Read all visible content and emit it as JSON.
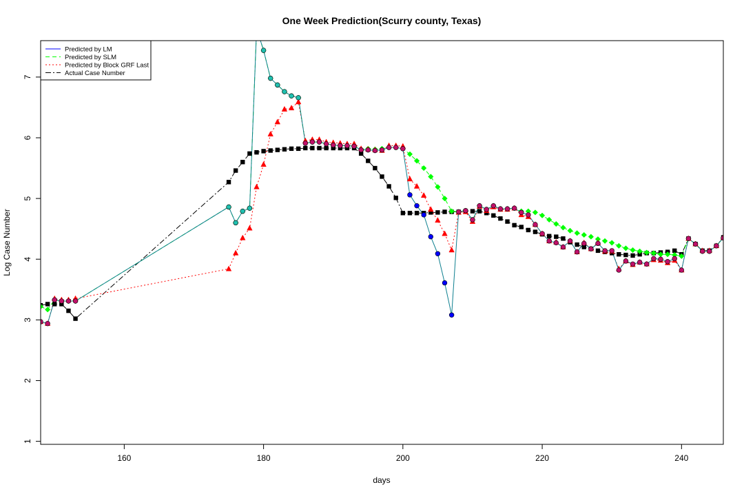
{
  "chart_data": {
    "type": "line",
    "title": "One Week Prediction(Scurry county, Texas)",
    "xlabel": "days",
    "ylabel": "Log Case Number",
    "xlim": [
      148,
      246
    ],
    "ylim": [
      0.95,
      7.6
    ],
    "xticks": [
      160,
      180,
      200,
      220,
      240
    ],
    "yticks": [
      1,
      2,
      3,
      4,
      5,
      6,
      7
    ],
    "grid": false,
    "legend_position": "top-left",
    "series": [
      {
        "name": "Predicted by LM",
        "color": "#0000ff",
        "marker": "circle",
        "x": [
          148,
          149,
          150,
          151,
          152,
          153,
          175,
          176,
          177,
          178,
          179,
          180,
          181,
          182,
          183,
          184,
          185,
          186,
          187,
          188,
          189,
          190,
          191,
          192,
          193,
          194,
          195,
          196,
          197,
          198,
          199,
          200,
          201,
          202,
          203,
          204,
          205,
          206,
          207,
          208,
          209,
          210,
          211,
          212,
          213,
          214,
          215,
          216,
          217,
          218,
          219,
          220,
          221,
          222,
          223,
          224,
          225,
          226,
          227,
          228,
          229,
          230,
          231,
          232,
          233,
          234,
          235,
          236,
          237,
          238,
          239,
          240,
          241,
          242,
          243,
          244,
          245,
          246
        ],
        "y": [
          2.97,
          2.94,
          3.33,
          3.31,
          3.31,
          3.31,
          4.86,
          4.6,
          4.79,
          4.84,
          7.8,
          7.44,
          6.98,
          6.87,
          6.76,
          6.69,
          6.66,
          5.91,
          5.93,
          5.93,
          5.9,
          5.88,
          5.87,
          5.87,
          5.86,
          5.8,
          5.8,
          5.79,
          5.8,
          5.84,
          5.84,
          5.82,
          5.06,
          4.88,
          4.73,
          4.37,
          4.09,
          3.61,
          3.08,
          4.78,
          4.8,
          4.65,
          4.88,
          4.82,
          4.88,
          4.83,
          4.83,
          4.84,
          4.77,
          4.73,
          4.57,
          4.42,
          4.3,
          4.27,
          4.2,
          4.3,
          4.12,
          4.26,
          4.17,
          4.26,
          4.14,
          4.14,
          3.82,
          3.97,
          3.92,
          3.95,
          3.92,
          4.01,
          4.0,
          3.96,
          4.01,
          3.82,
          4.34,
          4.25,
          4.13,
          4.13,
          4.22,
          4.35
        ]
      },
      {
        "name": "Predicted by SLM",
        "color": "#00ff00",
        "marker": "diamond",
        "x": [
          148,
          149,
          150,
          151,
          152,
          153,
          175,
          176,
          177,
          178,
          179,
          180,
          181,
          182,
          183,
          184,
          185,
          186,
          187,
          188,
          189,
          190,
          191,
          192,
          193,
          194,
          195,
          196,
          197,
          198,
          199,
          200,
          201,
          202,
          203,
          204,
          205,
          206,
          207,
          208,
          209,
          210,
          211,
          212,
          213,
          214,
          215,
          216,
          217,
          218,
          219,
          220,
          221,
          222,
          223,
          224,
          225,
          226,
          227,
          228,
          229,
          230,
          231,
          232,
          233,
          234,
          235,
          236,
          237,
          238,
          239,
          240,
          241,
          242,
          243,
          244,
          245,
          246
        ],
        "y": [
          3.22,
          3.17,
          3.33,
          3.31,
          3.31,
          3.31,
          4.86,
          4.6,
          4.79,
          4.84,
          7.8,
          7.44,
          6.98,
          6.87,
          6.76,
          6.69,
          6.66,
          5.91,
          5.93,
          5.93,
          5.9,
          5.88,
          5.87,
          5.87,
          5.86,
          5.81,
          5.82,
          5.81,
          5.82,
          5.84,
          5.84,
          5.82,
          5.73,
          5.62,
          5.5,
          5.36,
          5.19,
          5.0,
          4.79,
          4.78,
          4.8,
          4.65,
          4.88,
          4.82,
          4.88,
          4.83,
          4.83,
          4.84,
          4.79,
          4.79,
          4.77,
          4.72,
          4.65,
          4.58,
          4.52,
          4.47,
          4.43,
          4.4,
          4.37,
          4.33,
          4.3,
          4.27,
          4.22,
          4.18,
          4.15,
          4.13,
          4.11,
          4.1,
          4.08,
          4.08,
          4.07,
          4.05,
          4.34,
          4.25,
          4.13,
          4.13,
          4.22,
          4.35
        ]
      },
      {
        "name": "Predicted by Block GRF Last",
        "color": "#ff0000",
        "marker": "triangle",
        "x": [
          148,
          149,
          150,
          151,
          152,
          153,
          175,
          176,
          177,
          178,
          179,
          180,
          181,
          182,
          183,
          184,
          185,
          186,
          187,
          188,
          189,
          190,
          191,
          192,
          193,
          194,
          195,
          196,
          197,
          198,
          199,
          200,
          201,
          202,
          203,
          204,
          205,
          206,
          207,
          208,
          209,
          210,
          211,
          212,
          213,
          214,
          215,
          216,
          217,
          218,
          219,
          220,
          221,
          222,
          223,
          224,
          225,
          226,
          227,
          228,
          229,
          230,
          231,
          232,
          233,
          234,
          235,
          236,
          237,
          238,
          239,
          240,
          241,
          242,
          243,
          244,
          245,
          246
        ],
        "y": [
          2.97,
          2.94,
          3.35,
          3.33,
          3.33,
          3.35,
          3.84,
          4.1,
          4.35,
          4.51,
          5.19,
          5.56,
          6.06,
          6.26,
          6.47,
          6.49,
          6.59,
          5.95,
          5.97,
          5.97,
          5.93,
          5.92,
          5.91,
          5.9,
          5.9,
          5.82,
          5.81,
          5.8,
          5.79,
          5.87,
          5.87,
          5.86,
          5.32,
          5.2,
          5.05,
          4.82,
          4.64,
          4.42,
          4.15,
          4.77,
          4.78,
          4.62,
          4.87,
          4.8,
          4.86,
          4.82,
          4.82,
          4.84,
          4.73,
          4.7,
          4.57,
          4.42,
          4.3,
          4.28,
          4.2,
          4.3,
          4.12,
          4.27,
          4.17,
          4.27,
          4.13,
          4.13,
          3.84,
          3.97,
          3.91,
          3.95,
          3.92,
          3.99,
          3.98,
          3.94,
          3.98,
          3.82,
          4.34,
          4.25,
          4.14,
          4.14,
          4.22,
          4.36
        ]
      },
      {
        "name": "Actual Case Number",
        "color": "#000000",
        "marker": "square",
        "x": [
          148,
          149,
          150,
          151,
          152,
          153,
          175,
          176,
          177,
          178,
          179,
          180,
          181,
          182,
          183,
          184,
          185,
          186,
          187,
          188,
          189,
          190,
          191,
          192,
          193,
          194,
          195,
          196,
          197,
          198,
          199,
          200,
          201,
          202,
          203,
          204,
          205,
          206,
          207,
          208,
          209,
          210,
          211,
          212,
          213,
          214,
          215,
          216,
          217,
          218,
          219,
          220,
          221,
          222,
          223,
          224,
          225,
          226,
          227,
          228,
          229,
          230,
          231,
          232,
          233,
          234,
          235,
          236,
          237,
          238,
          239,
          240,
          241,
          242,
          243,
          244,
          245,
          246
        ],
        "y": [
          3.24,
          3.26,
          3.26,
          3.26,
          3.15,
          3.02,
          5.27,
          5.46,
          5.6,
          5.74,
          5.76,
          5.78,
          5.79,
          5.8,
          5.81,
          5.82,
          5.82,
          5.83,
          5.83,
          5.83,
          5.83,
          5.83,
          5.83,
          5.83,
          5.83,
          5.74,
          5.62,
          5.5,
          5.36,
          5.2,
          5.01,
          4.76,
          4.76,
          4.76,
          4.76,
          4.77,
          4.77,
          4.78,
          4.78,
          4.78,
          4.79,
          4.79,
          4.79,
          4.76,
          4.72,
          4.67,
          4.62,
          4.56,
          4.53,
          4.48,
          4.45,
          4.41,
          4.38,
          4.37,
          4.34,
          4.28,
          4.24,
          4.2,
          4.17,
          4.14,
          4.12,
          4.1,
          4.08,
          4.07,
          4.06,
          4.08,
          4.1,
          4.1,
          4.11,
          4.12,
          4.14,
          4.08,
          4.34,
          4.25,
          4.14,
          4.14,
          4.22,
          4.36
        ]
      }
    ]
  }
}
